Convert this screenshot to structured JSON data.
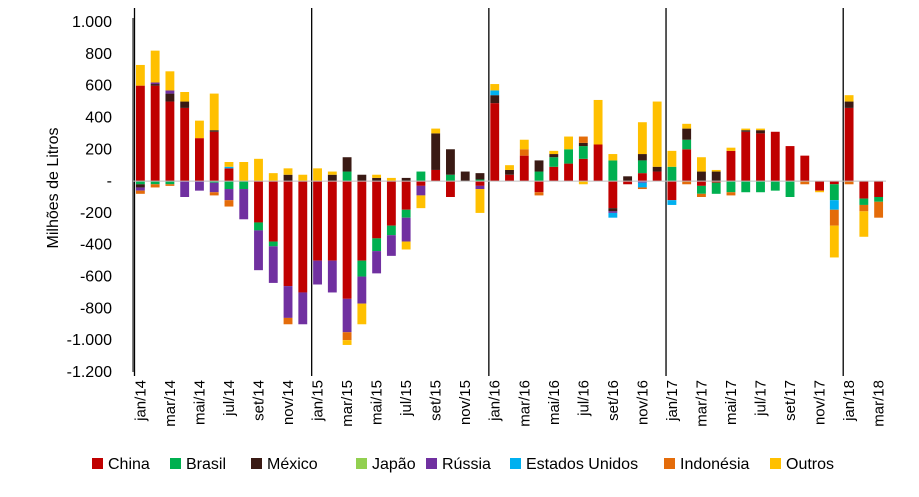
{
  "chart_data": {
    "type": "bar",
    "stacked": true,
    "title": "",
    "xlabel": "",
    "ylabel": "Milhões de Litros",
    "ylim": [
      -1200,
      1000
    ],
    "yticks": [
      -1200,
      -1000,
      -800,
      -600,
      -400,
      -200,
      0,
      200,
      400,
      600,
      800,
      1000
    ],
    "ytick_labels": [
      "-1.200",
      "-1.000",
      "-800",
      "-600",
      "-400",
      "-200",
      "-",
      "200",
      "400",
      "600",
      "800",
      "1.000"
    ],
    "grid": false,
    "legend_position": "bottom",
    "year_separators_before": [
      "jan/14",
      "jan/15",
      "jan/16",
      "jan/17",
      "jan/18"
    ],
    "categories": [
      "jan/14",
      "fev/14",
      "mar/14",
      "abr/14",
      "mai/14",
      "jun/14",
      "jul/14",
      "ago/14",
      "set/14",
      "out/14",
      "nov/14",
      "dez/14",
      "jan/15",
      "fev/15",
      "mar/15",
      "abr/15",
      "mai/15",
      "jun/15",
      "jul/15",
      "ago/15",
      "set/15",
      "out/15",
      "nov/15",
      "dez/15",
      "jan/16",
      "fev/16",
      "mar/16",
      "abr/16",
      "mai/16",
      "jun/16",
      "jul/16",
      "ago/16",
      "set/16",
      "out/16",
      "nov/16",
      "dez/16",
      "jan/17",
      "fev/17",
      "mar/17",
      "abr/17",
      "mai/17",
      "jun/17",
      "jul/17",
      "ago/17",
      "set/17",
      "out/17",
      "nov/17",
      "dez/17",
      "jan/18",
      "fev/18",
      "mar/18"
    ],
    "tick_labels": [
      "jan/14",
      "",
      "mar/14",
      "",
      "mai/14",
      "",
      "jul/14",
      "",
      "set/14",
      "",
      "nov/14",
      "",
      "jan/15",
      "",
      "mar/15",
      "",
      "mai/15",
      "",
      "jul/15",
      "",
      "set/15",
      "",
      "nov/15",
      "",
      "jan/16",
      "",
      "mar/16",
      "",
      "mai/16",
      "",
      "jul/16",
      "",
      "set/16",
      "",
      "nov/16",
      "",
      "jan/17",
      "",
      "mar/17",
      "",
      "mai/17",
      "",
      "jul/17",
      "",
      "set/17",
      "",
      "nov/17",
      "",
      "jan/18",
      "",
      "mar/18"
    ],
    "series": [
      {
        "name": "China",
        "color": "#C00000",
        "values": [
          600,
          600,
          500,
          460,
          270,
          310,
          80,
          0,
          -260,
          -380,
          -660,
          -700,
          -500,
          -500,
          -740,
          -500,
          -360,
          -280,
          -180,
          -30,
          70,
          -100,
          0,
          -30,
          490,
          40,
          160,
          -70,
          90,
          110,
          140,
          230,
          -170,
          -20,
          50,
          60,
          -120,
          200,
          -30,
          -10,
          190,
          310,
          300,
          310,
          220,
          160,
          -60,
          -20,
          460,
          -110,
          -100
        ]
      },
      {
        "name": "Brasil",
        "color": "#00B050",
        "values": [
          -20,
          -20,
          -20,
          0,
          0,
          -10,
          -50,
          -50,
          -50,
          -30,
          0,
          0,
          0,
          0,
          60,
          -100,
          -80,
          -60,
          -50,
          60,
          0,
          40,
          0,
          10,
          0,
          0,
          0,
          60,
          60,
          90,
          80,
          0,
          130,
          0,
          80,
          0,
          90,
          60,
          -50,
          -70,
          -70,
          -70,
          -70,
          -60,
          -100,
          0,
          0,
          -100,
          0,
          -40,
          -30
        ]
      },
      {
        "name": "México",
        "color": "#3A1A14",
        "values": [
          -20,
          10,
          50,
          40,
          0,
          10,
          0,
          0,
          0,
          0,
          40,
          0,
          0,
          40,
          90,
          40,
          20,
          0,
          20,
          0,
          230,
          160,
          60,
          40,
          50,
          30,
          0,
          70,
          20,
          0,
          20,
          0,
          -20,
          30,
          40,
          30,
          0,
          70,
          60,
          60,
          0,
          10,
          20,
          0,
          0,
          0,
          0,
          0,
          40,
          0,
          0
        ]
      },
      {
        "name": "Japão",
        "color": "#92D050",
        "values": [
          0,
          0,
          0,
          0,
          0,
          0,
          0,
          0,
          0,
          0,
          0,
          0,
          0,
          0,
          0,
          0,
          0,
          0,
          0,
          0,
          0,
          0,
          0,
          0,
          0,
          0,
          0,
          0,
          0,
          0,
          0,
          0,
          0,
          0,
          0,
          0,
          0,
          0,
          0,
          0,
          0,
          0,
          0,
          0,
          0,
          0,
          0,
          0,
          0,
          0,
          0
        ]
      },
      {
        "name": "Rússia",
        "color": "#7030A0",
        "values": [
          -20,
          10,
          20,
          -100,
          -60,
          -60,
          -70,
          -190,
          -250,
          -230,
          -200,
          -200,
          -150,
          -200,
          -210,
          -170,
          -140,
          -130,
          -150,
          -60,
          0,
          0,
          0,
          -20,
          0,
          0,
          0,
          0,
          0,
          0,
          0,
          0,
          -10,
          0,
          -10,
          0,
          0,
          0,
          0,
          0,
          0,
          0,
          0,
          0,
          0,
          0,
          0,
          0,
          0,
          0,
          0
        ]
      },
      {
        "name": "Estados Unidos",
        "color": "#00B0F0",
        "values": [
          0,
          0,
          0,
          0,
          0,
          0,
          10,
          0,
          0,
          0,
          0,
          0,
          0,
          0,
          0,
          0,
          0,
          0,
          0,
          0,
          0,
          0,
          0,
          0,
          30,
          0,
          0,
          0,
          0,
          0,
          0,
          0,
          -30,
          0,
          -30,
          0,
          -30,
          0,
          0,
          0,
          0,
          0,
          0,
          0,
          0,
          0,
          0,
          -60,
          0,
          0,
          0
        ]
      },
      {
        "name": "Indonésia",
        "color": "#E46C0A",
        "values": [
          -20,
          -20,
          -10,
          0,
          0,
          -20,
          -40,
          0,
          0,
          0,
          -40,
          0,
          0,
          0,
          -50,
          0,
          0,
          0,
          0,
          0,
          0,
          0,
          0,
          0,
          0,
          0,
          40,
          -20,
          0,
          0,
          40,
          0,
          0,
          0,
          -10,
          0,
          0,
          -20,
          -20,
          0,
          -20,
          0,
          0,
          0,
          0,
          -20,
          0,
          -100,
          -20,
          -40,
          -100
        ]
      },
      {
        "name": "Outros",
        "color": "#FFC000",
        "values": [
          130,
          200,
          120,
          60,
          110,
          230,
          30,
          120,
          140,
          50,
          40,
          40,
          80,
          20,
          -30,
          -130,
          20,
          20,
          -50,
          -80,
          30,
          0,
          0,
          -150,
          40,
          30,
          60,
          0,
          20,
          80,
          -20,
          280,
          40,
          0,
          200,
          410,
          100,
          30,
          90,
          10,
          20,
          10,
          10,
          0,
          0,
          0,
          -10,
          -200,
          40,
          -160,
          0
        ]
      }
    ]
  }
}
